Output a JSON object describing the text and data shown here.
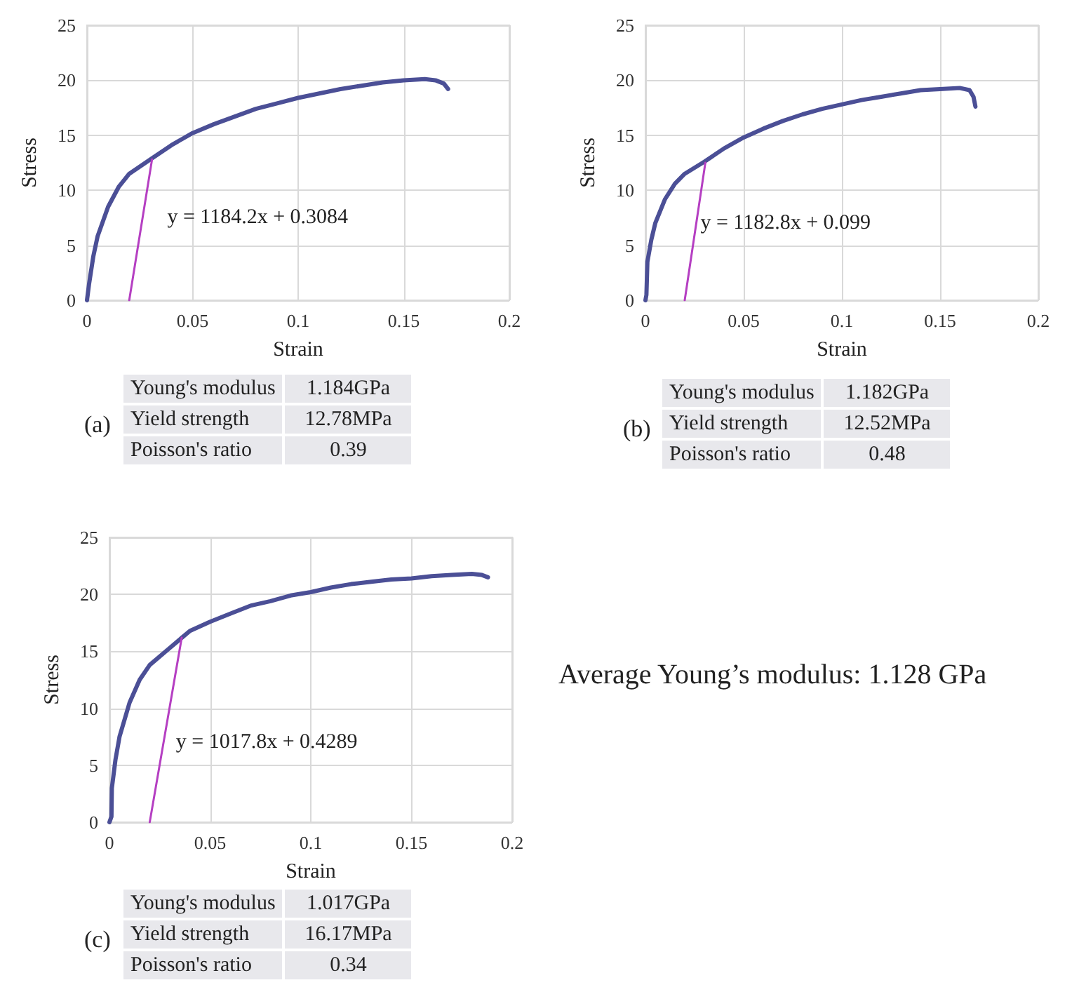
{
  "chart_data": [
    {
      "type": "line",
      "xlabel": "Strain",
      "ylabel": "Stress",
      "xlim": [
        0,
        0.2
      ],
      "xticks": [
        0,
        0.05,
        0.1,
        0.15,
        0.2
      ],
      "ylim": [
        0,
        25
      ],
      "yticks": [
        0,
        5,
        10,
        15,
        20,
        25
      ],
      "grid": true,
      "marker": "none",
      "line_style": "solid",
      "annotations": [
        "y = 1184.2x + 0.3084",
        "(a)",
        "Young's modulus",
        "1.184GPa",
        "Yield strength",
        "12.78MPa",
        "Poisson's ratio",
        "0.39"
      ],
      "series": [
        {
          "color": "#4b4f96",
          "x": [
            0,
            0.001,
            0.003,
            0.005,
            0.01,
            0.015,
            0.02,
            0.03,
            0.04,
            0.05,
            0.06,
            0.07,
            0.08,
            0.09,
            0.1,
            0.11,
            0.12,
            0.13,
            0.14,
            0.15,
            0.16,
            0.165,
            0.169,
            0.171
          ],
          "values": [
            0,
            1.5,
            4,
            5.8,
            8.5,
            10.3,
            11.5,
            12.8,
            14.1,
            15.2,
            16,
            16.7,
            17.4,
            17.9,
            18.4,
            18.8,
            19.2,
            19.5,
            19.8,
            20,
            20.1,
            20,
            19.7,
            19.2
          ]
        },
        {
          "color": "#b53fc2",
          "x": [
            0.02,
            0.0308
          ],
          "values": [
            0,
            12.8
          ]
        }
      ]
    },
    {
      "type": "line",
      "xlabel": "Strain",
      "ylabel": "Stress",
      "xlim": [
        0,
        0.2
      ],
      "xticks": [
        0,
        0.05,
        0.1,
        0.15,
        0.2
      ],
      "ylim": [
        0,
        25
      ],
      "yticks": [
        0,
        5,
        10,
        15,
        20,
        25
      ],
      "grid": true,
      "marker": "none",
      "line_style": "solid",
      "annotations": [
        "y = 1182.8x + 0.099",
        "(b)",
        "Young's modulus",
        "1.182GPa",
        "Yield strength",
        "12.52MPa",
        "Poisson's ratio",
        "0.48"
      ],
      "series": [
        {
          "color": "#4b4f96",
          "x": [
            0,
            0.0005,
            0.001,
            0.003,
            0.005,
            0.01,
            0.015,
            0.02,
            0.03,
            0.04,
            0.05,
            0.06,
            0.07,
            0.08,
            0.09,
            0.1,
            0.11,
            0.12,
            0.13,
            0.14,
            0.15,
            0.16,
            0.165,
            0.167,
            0.168
          ],
          "values": [
            0,
            0.5,
            3.5,
            5.5,
            7,
            9.2,
            10.6,
            11.5,
            12.6,
            13.8,
            14.8,
            15.6,
            16.3,
            16.9,
            17.4,
            17.8,
            18.2,
            18.5,
            18.8,
            19.1,
            19.2,
            19.3,
            19.1,
            18.5,
            17.6
          ]
        },
        {
          "color": "#b53fc2",
          "x": [
            0.02,
            0.0305
          ],
          "values": [
            0,
            12.5
          ]
        }
      ]
    },
    {
      "type": "line",
      "xlabel": "Strain",
      "ylabel": "Stress",
      "xlim": [
        0,
        0.2
      ],
      "xticks": [
        0,
        0.05,
        0.1,
        0.15,
        0.2
      ],
      "ylim": [
        0,
        25
      ],
      "yticks": [
        0,
        5,
        10,
        15,
        20,
        25
      ],
      "grid": true,
      "marker": "none",
      "line_style": "solid",
      "annotations": [
        "y = 1017.8x + 0.4289",
        "(c)",
        "Young's modulus",
        "1.017GPa",
        "Yield strength",
        "16.17MPa",
        "Poisson's ratio",
        "0.34"
      ],
      "series": [
        {
          "color": "#4b4f96",
          "x": [
            0,
            0.001,
            0.0012,
            0.003,
            0.005,
            0.01,
            0.015,
            0.02,
            0.03,
            0.036,
            0.04,
            0.05,
            0.06,
            0.07,
            0.08,
            0.09,
            0.1,
            0.11,
            0.12,
            0.13,
            0.14,
            0.15,
            0.16,
            0.17,
            0.18,
            0.185,
            0.188
          ],
          "values": [
            0,
            0.5,
            3,
            5.5,
            7.5,
            10.5,
            12.5,
            13.8,
            15.3,
            16.2,
            16.8,
            17.6,
            18.3,
            19,
            19.4,
            19.9,
            20.2,
            20.6,
            20.9,
            21.1,
            21.3,
            21.4,
            21.6,
            21.7,
            21.8,
            21.7,
            21.5
          ]
        },
        {
          "color": "#b53fc2",
          "x": [
            0.02,
            0.0359
          ],
          "values": [
            0,
            16.2
          ]
        }
      ]
    },
    {
      "type": "other",
      "title": "Average Young’s modulus: 1.128 GPa"
    }
  ]
}
